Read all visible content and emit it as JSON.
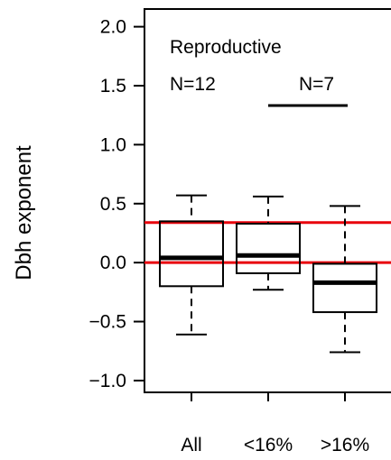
{
  "chart_data": {
    "type": "box",
    "title": "Reproductive",
    "ylabel": "Dbh exponent",
    "xlabel": "",
    "ylim": [
      -1.1,
      2.15
    ],
    "yticks": [
      -1.0,
      -0.5,
      0.0,
      0.5,
      1.0,
      1.5,
      2.0
    ],
    "ytick_labels": [
      "−1.0",
      "−0.5",
      "0.0",
      "0.5",
      "1.0",
      "1.5",
      "2.0"
    ],
    "categories": [
      "All",
      "<16%",
      ">16%"
    ],
    "boxes": [
      {
        "category": "All",
        "whisker_low": -0.61,
        "q1": -0.2,
        "median": 0.04,
        "q3": 0.35,
        "whisker_high": 0.57
      },
      {
        "category": "<16%",
        "whisker_low": -0.23,
        "q1": -0.09,
        "median": 0.06,
        "q3": 0.33,
        "whisker_high": 0.56
      },
      {
        "category": ">16%",
        "whisker_low": -0.76,
        "q1": -0.42,
        "median": -0.17,
        "q3": -0.01,
        "whisker_high": 0.48
      }
    ],
    "reference_lines": [
      {
        "y": 0.34,
        "color": "#e8000b"
      },
      {
        "y": 0.0,
        "color": "#e8000b"
      }
    ],
    "annotations": [
      {
        "text": "N=12",
        "group": "All"
      },
      {
        "text": "N=7",
        "group": "<16% and >16%"
      }
    ],
    "grid": false
  }
}
